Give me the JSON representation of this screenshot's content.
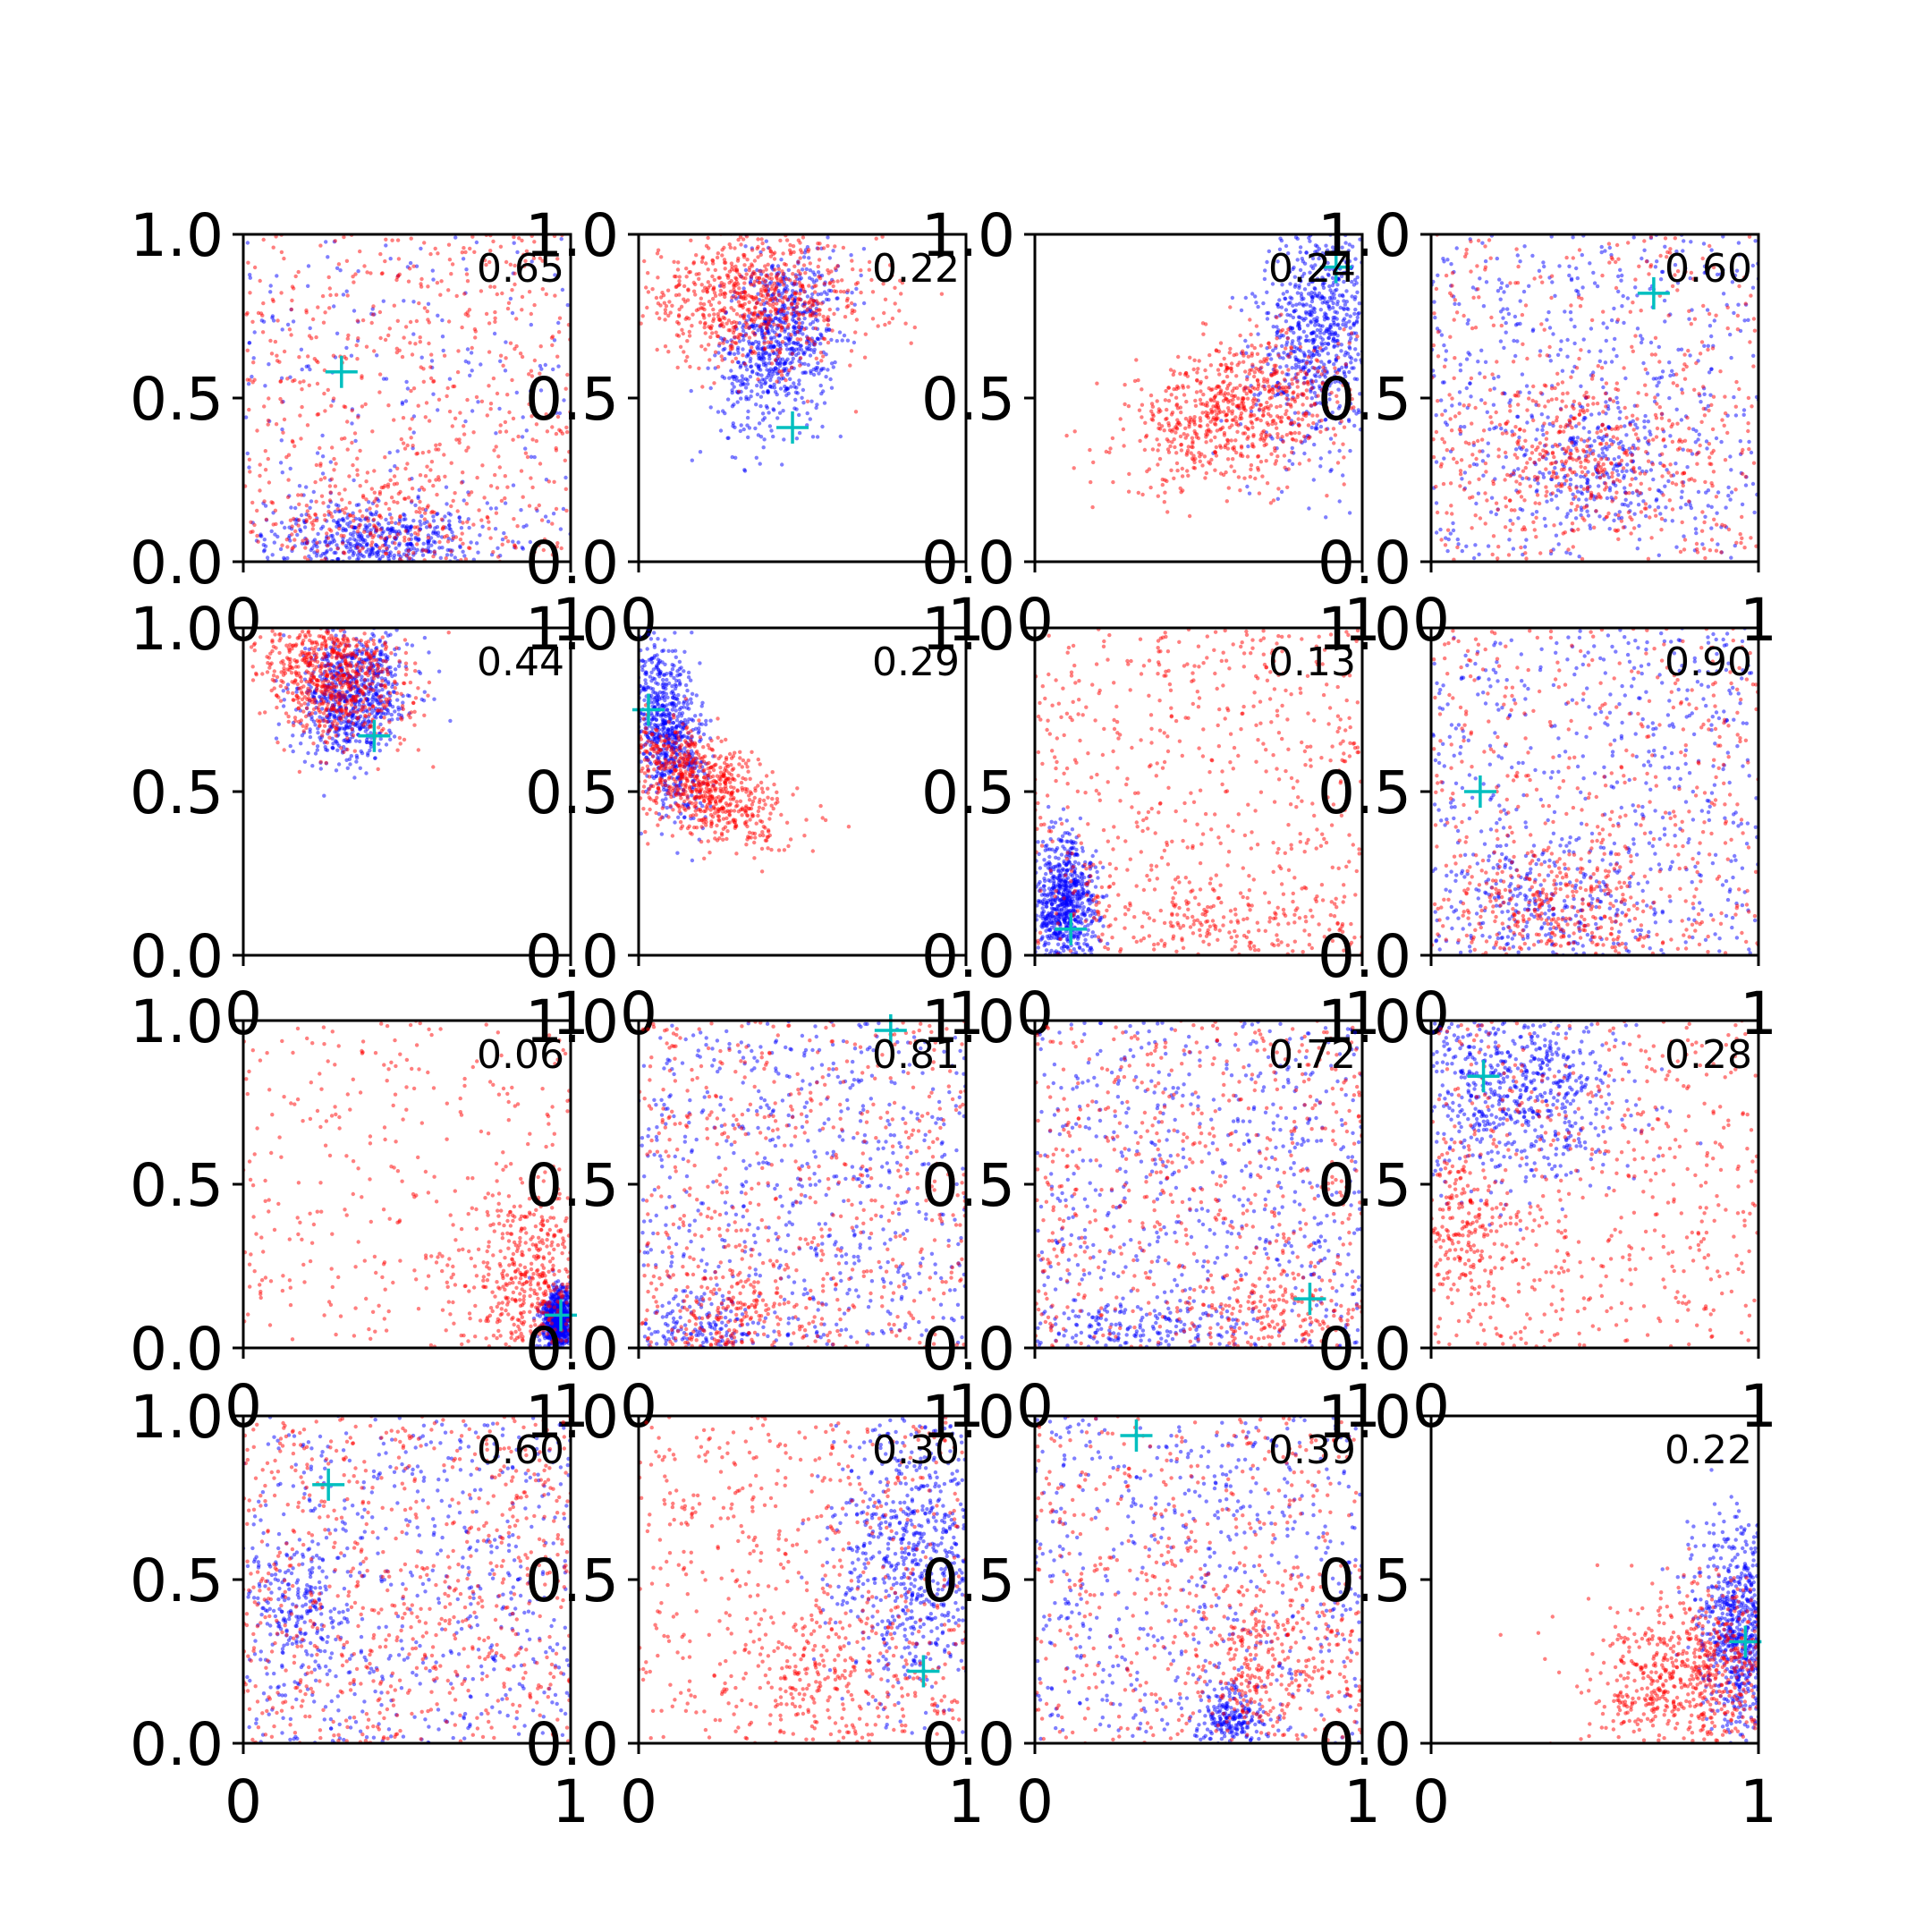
{
  "chart_data": {
    "type": "scatter",
    "grid": false,
    "layout": {
      "rows": 4,
      "cols": 4
    },
    "xlim": [
      0,
      1
    ],
    "ylim": [
      0,
      1
    ],
    "x_tick_labels": [
      "0",
      "1"
    ],
    "y_tick_labels": [
      "0.0",
      "0.5",
      "1.0"
    ],
    "series": [
      {
        "color": "#0000ff",
        "marker": "dot"
      },
      {
        "color": "#ff0000",
        "marker": "dot"
      },
      {
        "color": "#00bfbf",
        "marker": "plus"
      }
    ],
    "panels": [
      {
        "score": "0.65",
        "marker": [
          0.3,
          0.58
        ],
        "blue": {
          "kind": "mix",
          "u": 0.25,
          "c": [
            0.4,
            0.06
          ],
          "s": [
            0.16,
            0.06
          ]
        },
        "red": {
          "kind": "mix",
          "u": 0.8,
          "c": [
            0.45,
            0.12
          ],
          "s": [
            0.15,
            0.08
          ]
        }
      },
      {
        "score": "0.22",
        "marker": [
          0.47,
          0.41
        ],
        "blue": {
          "kind": "gauss",
          "c": [
            0.43,
            0.68
          ],
          "s": [
            0.09,
            0.14
          ],
          "rho": 0.3
        },
        "red": {
          "kind": "gauss",
          "c": [
            0.35,
            0.8
          ],
          "s": [
            0.19,
            0.1
          ],
          "rho": 0.0
        }
      },
      {
        "score": "0.24",
        "marker": [
          0.92,
          0.9
        ],
        "blue": {
          "kind": "gauss",
          "c": [
            0.87,
            0.7
          ],
          "s": [
            0.09,
            0.17
          ],
          "rho": 0.2
        },
        "red": {
          "kind": "gauss",
          "c": [
            0.62,
            0.46
          ],
          "s": [
            0.17,
            0.11
          ],
          "rho": 0.3
        }
      },
      {
        "score": "0.60",
        "marker": [
          0.68,
          0.82
        ],
        "blue": {
          "kind": "mix",
          "u": 0.7,
          "c": [
            0.5,
            0.3
          ],
          "s": [
            0.12,
            0.1
          ]
        },
        "red": {
          "kind": "mix",
          "u": 0.5,
          "c": [
            0.45,
            0.32
          ],
          "s": [
            0.22,
            0.12
          ]
        }
      },
      {
        "score": "0.44",
        "marker": [
          0.4,
          0.67
        ],
        "blue": {
          "kind": "gauss",
          "c": [
            0.33,
            0.8
          ],
          "s": [
            0.08,
            0.1
          ],
          "rho": 0.2
        },
        "red": {
          "kind": "gauss",
          "c": [
            0.28,
            0.86
          ],
          "s": [
            0.11,
            0.1
          ],
          "rho": -0.2
        }
      },
      {
        "score": "0.29",
        "marker": [
          0.03,
          0.75
        ],
        "blue": {
          "kind": "gauss",
          "c": [
            0.08,
            0.7
          ],
          "s": [
            0.06,
            0.14
          ],
          "rho": -0.4
        },
        "red": {
          "kind": "gauss",
          "c": [
            0.18,
            0.53
          ],
          "s": [
            0.12,
            0.09
          ],
          "rho": -0.5
        }
      },
      {
        "score": "0.13",
        "marker": [
          0.11,
          0.08
        ],
        "blue": {
          "kind": "gauss",
          "c": [
            0.09,
            0.16
          ],
          "s": [
            0.05,
            0.1
          ],
          "rho": 0.0
        },
        "red": {
          "kind": "mix",
          "u": 0.8,
          "c": [
            0.5,
            0.1
          ],
          "s": [
            0.2,
            0.06
          ]
        }
      },
      {
        "score": "0.90",
        "marker": [
          0.15,
          0.5
        ],
        "blue": {
          "kind": "mix",
          "u": 0.7,
          "c": [
            0.35,
            0.15
          ],
          "s": [
            0.15,
            0.1
          ]
        },
        "red": {
          "kind": "mix",
          "u": 0.6,
          "c": [
            0.4,
            0.15
          ],
          "s": [
            0.15,
            0.12
          ]
        }
      },
      {
        "score": "0.06",
        "marker": [
          0.97,
          0.1
        ],
        "blue": {
          "kind": "gauss",
          "c": [
            0.96,
            0.08
          ],
          "s": [
            0.025,
            0.05
          ],
          "rho": 0.0
        },
        "red": {
          "kind": "mix",
          "u": 0.45,
          "c": [
            0.87,
            0.22
          ],
          "s": [
            0.1,
            0.13
          ]
        }
      },
      {
        "score": "0.81",
        "marker": [
          0.77,
          0.97
        ],
        "blue": {
          "kind": "mix",
          "u": 0.85,
          "c": [
            0.2,
            0.06
          ],
          "s": [
            0.1,
            0.05
          ]
        },
        "red": {
          "kind": "mix",
          "u": 0.8,
          "c": [
            0.3,
            0.1
          ],
          "s": [
            0.12,
            0.07
          ]
        }
      },
      {
        "score": "0.72",
        "marker": [
          0.84,
          0.15
        ],
        "blue": {
          "kind": "mix",
          "u": 0.8,
          "c": [
            0.3,
            0.05
          ],
          "s": [
            0.2,
            0.04
          ]
        },
        "red": {
          "kind": "mix",
          "u": 0.8,
          "c": [
            0.7,
            0.1
          ],
          "s": [
            0.15,
            0.07
          ]
        }
      },
      {
        "score": "0.28",
        "marker": [
          0.16,
          0.83
        ],
        "blue": {
          "kind": "gauss",
          "c": [
            0.25,
            0.78
          ],
          "s": [
            0.18,
            0.15
          ],
          "rho": 0.0
        },
        "red": {
          "kind": "mix",
          "u": 0.75,
          "c": [
            0.1,
            0.35
          ],
          "s": [
            0.08,
            0.12
          ]
        }
      },
      {
        "score": "0.60",
        "marker": [
          0.26,
          0.79
        ],
        "blue": {
          "kind": "mix",
          "u": 0.75,
          "c": [
            0.15,
            0.4
          ],
          "s": [
            0.08,
            0.12
          ]
        },
        "red": {
          "kind": "mix",
          "u": 0.9,
          "c": [
            0.5,
            0.3
          ],
          "s": [
            0.2,
            0.15
          ]
        }
      },
      {
        "score": "0.30",
        "marker": [
          0.87,
          0.22
        ],
        "blue": {
          "kind": "gauss",
          "c": [
            0.84,
            0.58
          ],
          "s": [
            0.13,
            0.22
          ],
          "rho": 0.0
        },
        "red": {
          "kind": "mix",
          "u": 0.7,
          "c": [
            0.6,
            0.2
          ],
          "s": [
            0.2,
            0.1
          ]
        }
      },
      {
        "score": "0.39",
        "marker": [
          0.31,
          0.94
        ],
        "blue": {
          "kind": "mix",
          "u": 0.7,
          "c": [
            0.6,
            0.08
          ],
          "s": [
            0.05,
            0.05
          ]
        },
        "red": {
          "kind": "mix",
          "u": 0.65,
          "c": [
            0.7,
            0.25
          ],
          "s": [
            0.15,
            0.12
          ]
        }
      },
      {
        "score": "0.22",
        "marker": [
          0.96,
          0.31
        ],
        "blue": {
          "kind": "gauss",
          "c": [
            0.94,
            0.35
          ],
          "s": [
            0.06,
            0.16
          ],
          "rho": 0.0
        },
        "red": {
          "kind": "gauss",
          "c": [
            0.8,
            0.22
          ],
          "s": [
            0.16,
            0.13
          ],
          "rho": 0.2
        }
      }
    ]
  }
}
